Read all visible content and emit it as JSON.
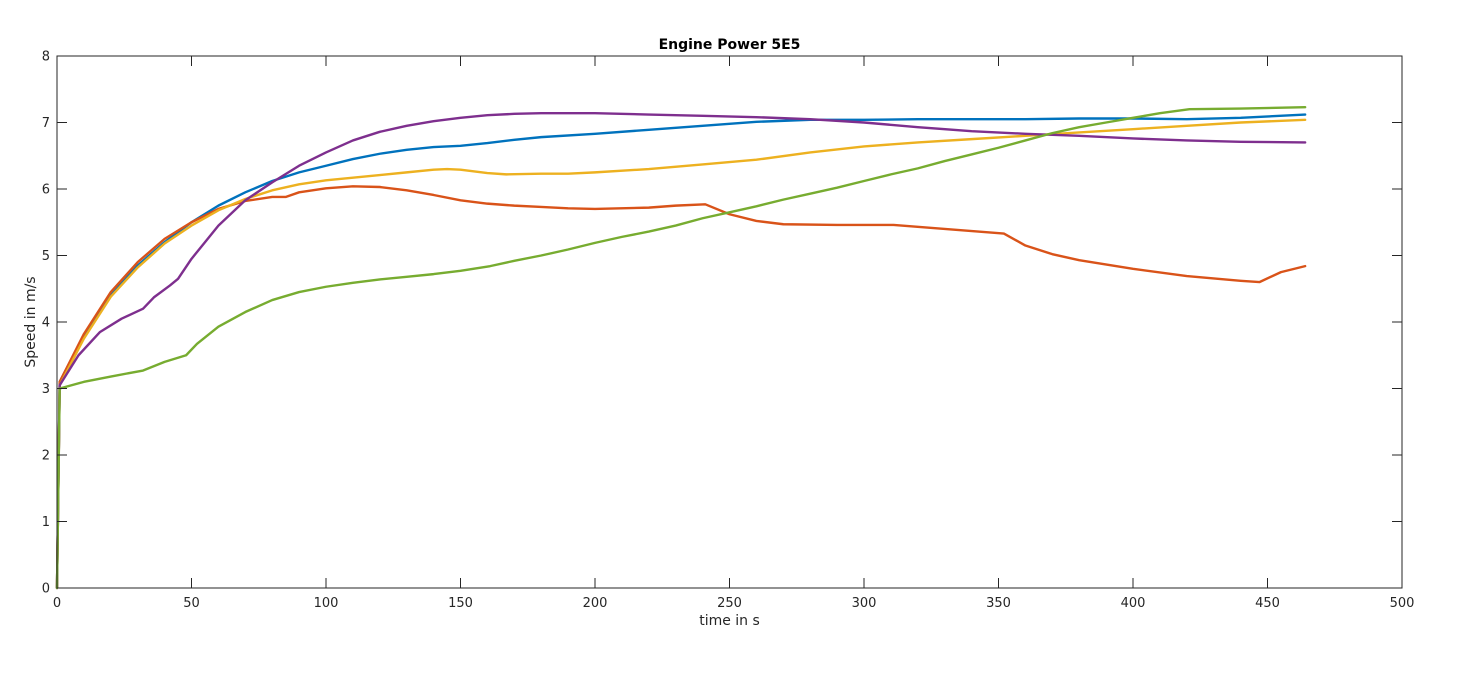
{
  "chart_data": {
    "type": "line",
    "title": "Engine Power 5E5",
    "xlabel": "time in s",
    "ylabel": "Speed in m/s",
    "xlim": [
      0,
      500
    ],
    "ylim": [
      0,
      8
    ],
    "xticks": [
      "0",
      "50",
      "100",
      "150",
      "200",
      "250",
      "300",
      "350",
      "400",
      "450",
      "500"
    ],
    "yticks": [
      "0",
      "1",
      "2",
      "3",
      "4",
      "5",
      "6",
      "7",
      "8"
    ],
    "grid": false,
    "legend": null,
    "series": [
      {
        "name": "series-1",
        "color": "#0072BD",
        "points": [
          [
            0,
            0
          ],
          [
            1,
            3.1
          ],
          [
            10,
            3.8
          ],
          [
            20,
            4.4
          ],
          [
            30,
            4.85
          ],
          [
            40,
            5.2
          ],
          [
            50,
            5.5
          ],
          [
            60,
            5.75
          ],
          [
            70,
            5.95
          ],
          [
            80,
            6.12
          ],
          [
            90,
            6.25
          ],
          [
            100,
            6.35
          ],
          [
            110,
            6.45
          ],
          [
            120,
            6.53
          ],
          [
            130,
            6.59
          ],
          [
            140,
            6.63
          ],
          [
            150,
            6.65
          ],
          [
            160,
            6.69
          ],
          [
            170,
            6.74
          ],
          [
            180,
            6.78
          ],
          [
            200,
            6.83
          ],
          [
            220,
            6.89
          ],
          [
            240,
            6.95
          ],
          [
            260,
            7.01
          ],
          [
            280,
            7.04
          ],
          [
            300,
            7.04
          ],
          [
            320,
            7.05
          ],
          [
            340,
            7.05
          ],
          [
            360,
            7.05
          ],
          [
            380,
            7.06
          ],
          [
            400,
            7.06
          ],
          [
            420,
            7.05
          ],
          [
            440,
            7.07
          ],
          [
            464,
            7.12
          ]
        ]
      },
      {
        "name": "series-2",
        "color": "#D95319",
        "points": [
          [
            0,
            0
          ],
          [
            1,
            3.1
          ],
          [
            10,
            3.82
          ],
          [
            20,
            4.45
          ],
          [
            30,
            4.9
          ],
          [
            40,
            5.25
          ],
          [
            50,
            5.5
          ],
          [
            60,
            5.7
          ],
          [
            70,
            5.82
          ],
          [
            80,
            5.88
          ],
          [
            85,
            5.88
          ],
          [
            90,
            5.95
          ],
          [
            100,
            6.01
          ],
          [
            110,
            6.04
          ],
          [
            120,
            6.03
          ],
          [
            130,
            5.98
          ],
          [
            140,
            5.91
          ],
          [
            150,
            5.83
          ],
          [
            160,
            5.78
          ],
          [
            170,
            5.75
          ],
          [
            180,
            5.73
          ],
          [
            190,
            5.71
          ],
          [
            200,
            5.7
          ],
          [
            220,
            5.72
          ],
          [
            230,
            5.75
          ],
          [
            241,
            5.77
          ],
          [
            250,
            5.62
          ],
          [
            260,
            5.52
          ],
          [
            270,
            5.47
          ],
          [
            290,
            5.46
          ],
          [
            311,
            5.46
          ],
          [
            330,
            5.4
          ],
          [
            352,
            5.33
          ],
          [
            360,
            5.15
          ],
          [
            370,
            5.02
          ],
          [
            380,
            4.93
          ],
          [
            400,
            4.8
          ],
          [
            420,
            4.69
          ],
          [
            440,
            4.62
          ],
          [
            447,
            4.6
          ],
          [
            455,
            4.75
          ],
          [
            464,
            4.84
          ]
        ]
      },
      {
        "name": "series-3",
        "color": "#EDB120",
        "points": [
          [
            0,
            0
          ],
          [
            1,
            3.05
          ],
          [
            10,
            3.75
          ],
          [
            20,
            4.38
          ],
          [
            30,
            4.82
          ],
          [
            40,
            5.18
          ],
          [
            50,
            5.45
          ],
          [
            60,
            5.68
          ],
          [
            70,
            5.85
          ],
          [
            80,
            5.98
          ],
          [
            90,
            6.07
          ],
          [
            100,
            6.13
          ],
          [
            110,
            6.17
          ],
          [
            120,
            6.21
          ],
          [
            130,
            6.25
          ],
          [
            140,
            6.29
          ],
          [
            145,
            6.3
          ],
          [
            150,
            6.29
          ],
          [
            160,
            6.24
          ],
          [
            167,
            6.22
          ],
          [
            180,
            6.23
          ],
          [
            190,
            6.23
          ],
          [
            200,
            6.25
          ],
          [
            220,
            6.3
          ],
          [
            240,
            6.37
          ],
          [
            260,
            6.44
          ],
          [
            280,
            6.55
          ],
          [
            300,
            6.64
          ],
          [
            320,
            6.7
          ],
          [
            340,
            6.75
          ],
          [
            360,
            6.8
          ],
          [
            380,
            6.85
          ],
          [
            400,
            6.9
          ],
          [
            420,
            6.95
          ],
          [
            440,
            7.0
          ],
          [
            464,
            7.04
          ]
        ]
      },
      {
        "name": "series-4",
        "color": "#7E2F8E",
        "points": [
          [
            0,
            0
          ],
          [
            1,
            3.05
          ],
          [
            8,
            3.5
          ],
          [
            16,
            3.85
          ],
          [
            24,
            4.05
          ],
          [
            32,
            4.2
          ],
          [
            36,
            4.37
          ],
          [
            42,
            4.55
          ],
          [
            45,
            4.65
          ],
          [
            50,
            4.95
          ],
          [
            55,
            5.2
          ],
          [
            60,
            5.45
          ],
          [
            70,
            5.83
          ],
          [
            80,
            6.1
          ],
          [
            90,
            6.35
          ],
          [
            100,
            6.55
          ],
          [
            110,
            6.73
          ],
          [
            120,
            6.86
          ],
          [
            130,
            6.95
          ],
          [
            140,
            7.02
          ],
          [
            150,
            7.07
          ],
          [
            160,
            7.11
          ],
          [
            170,
            7.13
          ],
          [
            180,
            7.14
          ],
          [
            200,
            7.14
          ],
          [
            220,
            7.12
          ],
          [
            240,
            7.1
          ],
          [
            260,
            7.08
          ],
          [
            280,
            7.05
          ],
          [
            300,
            7.0
          ],
          [
            320,
            6.93
          ],
          [
            340,
            6.87
          ],
          [
            360,
            6.83
          ],
          [
            380,
            6.8
          ],
          [
            400,
            6.76
          ],
          [
            420,
            6.73
          ],
          [
            440,
            6.71
          ],
          [
            464,
            6.7
          ]
        ]
      },
      {
        "name": "series-5",
        "color": "#77AC30",
        "points": [
          [
            0,
            0
          ],
          [
            1,
            3.0
          ],
          [
            10,
            3.1
          ],
          [
            20,
            3.18
          ],
          [
            32,
            3.27
          ],
          [
            40,
            3.4
          ],
          [
            48,
            3.5
          ],
          [
            52,
            3.67
          ],
          [
            60,
            3.93
          ],
          [
            70,
            4.15
          ],
          [
            80,
            4.33
          ],
          [
            90,
            4.45
          ],
          [
            100,
            4.53
          ],
          [
            110,
            4.59
          ],
          [
            120,
            4.64
          ],
          [
            130,
            4.68
          ],
          [
            140,
            4.72
          ],
          [
            150,
            4.77
          ],
          [
            161,
            4.84
          ],
          [
            170,
            4.92
          ],
          [
            180,
            5.0
          ],
          [
            190,
            5.09
          ],
          [
            200,
            5.19
          ],
          [
            210,
            5.28
          ],
          [
            220,
            5.36
          ],
          [
            230,
            5.45
          ],
          [
            240,
            5.56
          ],
          [
            250,
            5.65
          ],
          [
            260,
            5.74
          ],
          [
            270,
            5.84
          ],
          [
            280,
            5.93
          ],
          [
            290,
            6.02
          ],
          [
            300,
            6.12
          ],
          [
            310,
            6.22
          ],
          [
            320,
            6.31
          ],
          [
            330,
            6.42
          ],
          [
            340,
            6.52
          ],
          [
            350,
            6.62
          ],
          [
            360,
            6.73
          ],
          [
            370,
            6.84
          ],
          [
            380,
            6.93
          ],
          [
            390,
            7.0
          ],
          [
            400,
            7.07
          ],
          [
            410,
            7.14
          ],
          [
            421,
            7.2
          ],
          [
            440,
            7.21
          ],
          [
            464,
            7.23
          ]
        ]
      }
    ]
  }
}
